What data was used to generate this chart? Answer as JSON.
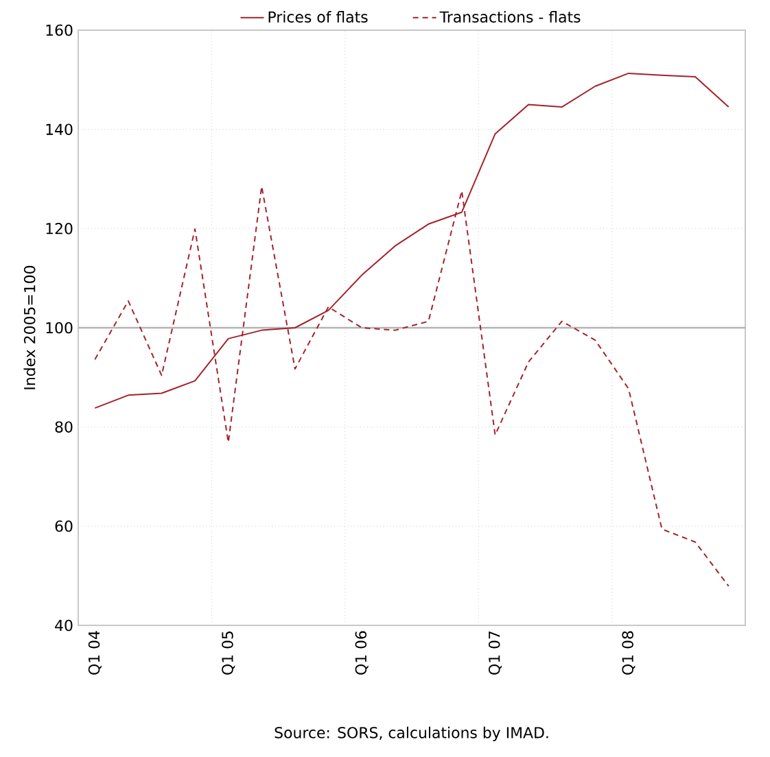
{
  "chart_data": {
    "type": "line",
    "categories": [
      "Q1 04",
      null,
      null,
      null,
      "Q1 05",
      null,
      null,
      null,
      "Q1 06",
      null,
      null,
      null,
      "Q1 07",
      null,
      null,
      null,
      "Q1 08",
      null,
      null,
      null
    ],
    "series": [
      {
        "name": "Prices of flats",
        "color": "#a3222b",
        "line_style": "solid",
        "values": [
          83.8,
          86.4,
          86.8,
          89.3,
          97.8,
          99.5,
          100,
          103.5,
          110.6,
          116.5,
          120.9,
          123.3,
          139.1,
          145,
          144.5,
          148.7,
          151.3,
          150.9,
          150.6,
          144.5
        ]
      },
      {
        "name": "Transactions - flats",
        "color": "#a3222b",
        "line_style": "dashed",
        "values": [
          93.6,
          105.4,
          90.4,
          119.9,
          76.9,
          128.5,
          91.7,
          104.2,
          100,
          99.5,
          101.3,
          127.6,
          78.4,
          93.1,
          101.3,
          97.5,
          87.7,
          59.4,
          56.8,
          47.9
        ]
      }
    ],
    "ylabel": "Index 2005=100",
    "ylim": [
      40,
      160
    ],
    "yticks": [
      40,
      60,
      80,
      100,
      120,
      140,
      160
    ],
    "ref_lines": [
      {
        "axis": "y",
        "value": 100,
        "color": "#b4b4b4"
      }
    ],
    "grid": true,
    "legend": "top",
    "annotations": [
      "Source: SORS, calculations by IMAD."
    ]
  }
}
